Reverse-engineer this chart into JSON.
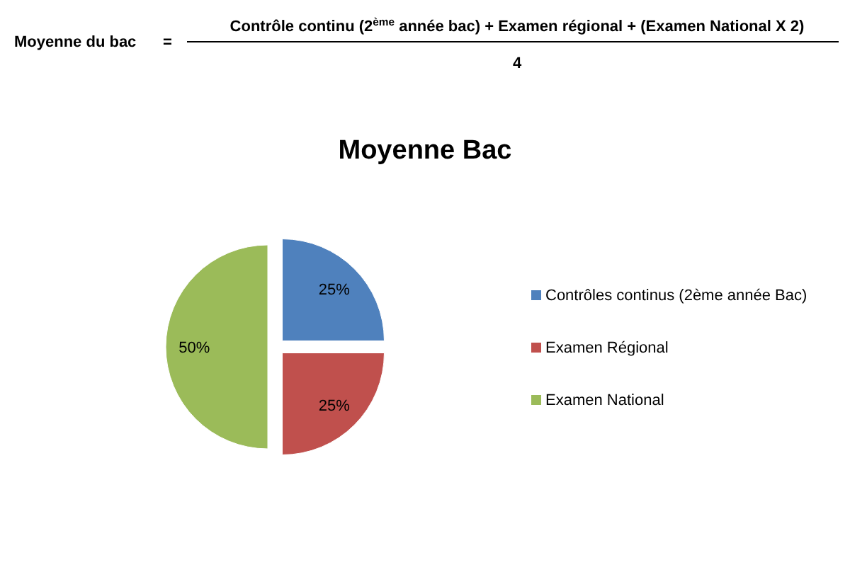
{
  "chart_data": {
    "type": "pie",
    "title": "Moyenne Bac",
    "annotations": [
      "Moyenne du bac",
      "=",
      "Contrôle continu (2$^{ème}$ année bac) + Examen régional + (Examen National X 2)",
      "4"
    ],
    "categories": [
      "Contrôles continus (2ème année Bac)",
      "Examen Régional",
      "Examen National"
    ],
    "values": [
      25,
      25,
      50
    ],
    "colors": [
      "#4f81bd",
      "#c0504d",
      "#9bbb59"
    ],
    "value_labels": [
      "25%",
      "25%",
      "50%"
    ],
    "legend": "right"
  }
}
